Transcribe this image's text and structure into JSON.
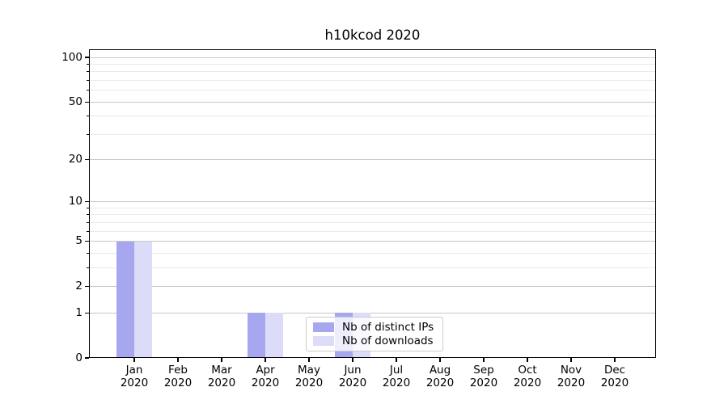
{
  "title": "h10kcod 2020",
  "legend": {
    "items": [
      {
        "label": "Nb of distinct IPs",
        "color": "#a7a7f0"
      },
      {
        "label": "Nb of downloads",
        "color": "#dcdcf9"
      }
    ]
  },
  "chart_data": {
    "type": "bar",
    "title": "h10kcod 2020",
    "categories": [
      "Jan 2020",
      "Feb 2020",
      "Mar 2020",
      "Apr 2020",
      "May 2020",
      "Jun 2020",
      "Jul 2020",
      "Aug 2020",
      "Sep 2020",
      "Oct 2020",
      "Nov 2020",
      "Dec 2020"
    ],
    "x_tick_month_labels": [
      "Jan",
      "Feb",
      "Mar",
      "Apr",
      "May",
      "Jun",
      "Jul",
      "Aug",
      "Sep",
      "Oct",
      "Nov",
      "Dec"
    ],
    "x_tick_year_label": "2020",
    "series": [
      {
        "name": "Nb of distinct IPs",
        "color": "#a7a7f0",
        "values": [
          5,
          0,
          0,
          1,
          0,
          1,
          0,
          0,
          0,
          0,
          0,
          0
        ]
      },
      {
        "name": "Nb of downloads",
        "color": "#dcdcf9",
        "values": [
          5,
          0,
          0,
          1,
          0,
          1,
          0,
          0,
          0,
          0,
          0,
          0
        ]
      }
    ],
    "yscale": "log1p",
    "ylim": [
      0,
      113.4
    ],
    "yticks_major": [
      0,
      1,
      2,
      5,
      10,
      20,
      50,
      100
    ],
    "yticks_minor": [
      3,
      4,
      6,
      7,
      8,
      9,
      30,
      40,
      60,
      70,
      80,
      90
    ],
    "grid": true,
    "legend_position": "lower center",
    "colors": {
      "major_grid": "#c8c8c8",
      "minor_grid": "#eaeaea",
      "spine": "#000000",
      "text": "#000000",
      "background": "#ffffff"
    }
  }
}
